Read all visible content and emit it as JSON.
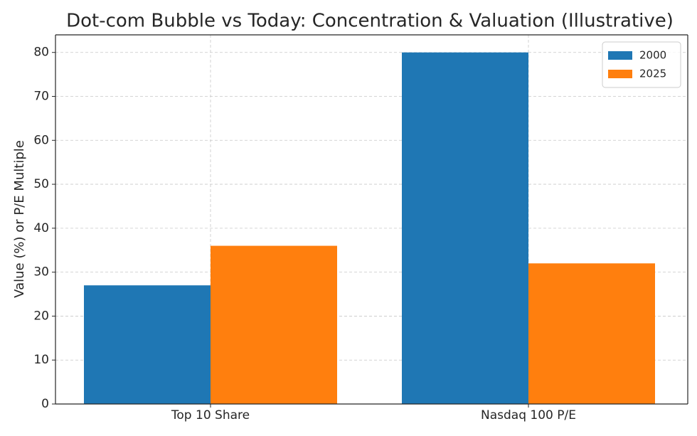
{
  "chart_data": {
    "type": "bar",
    "title": "Dot-com Bubble vs Today: Concentration & Valuation (Illustrative)",
    "y_label": "Value (%) or P/E Multiple",
    "categories": [
      "Top 10 Share",
      "Nasdaq 100 P/E"
    ],
    "series": [
      {
        "name": "2000",
        "color": "#1f77b4",
        "values": [
          27,
          80
        ]
      },
      {
        "name": "2025",
        "color": "#ff7f0e",
        "values": [
          36,
          32
        ]
      }
    ],
    "ylim": [
      0,
      84
    ],
    "yticks": [
      0,
      10,
      20,
      30,
      40,
      50,
      60,
      70,
      80
    ],
    "grid": true,
    "legend": "upper-right"
  }
}
